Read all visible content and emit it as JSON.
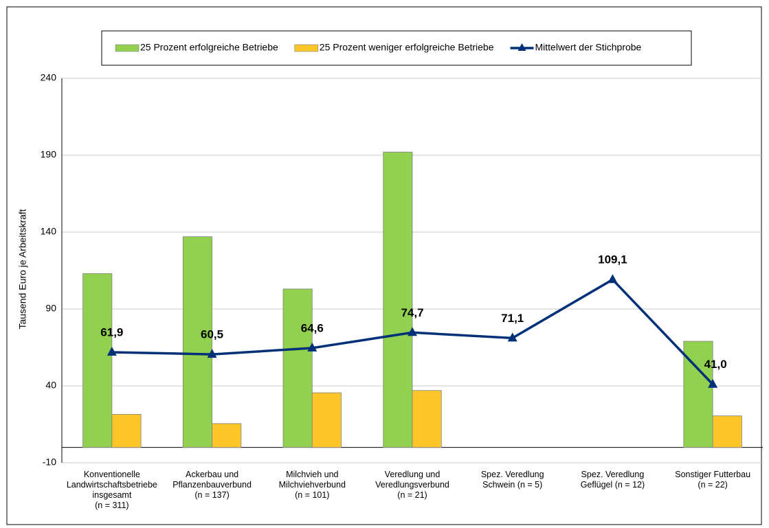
{
  "chart_data": {
    "type": "bar",
    "y_label": "Tausend Euro je Arbeitskraft",
    "categories": [
      "Konventionelle\nLandwirtschaftsbetriebe\ninsgesamt\n(n = 311)",
      "Ackerbau und\nPflanzenbauverbund\n(n = 137)",
      "Milchvieh und\nMilchviehverbund\n(n = 101)",
      "Veredlung und\nVeredlungsverbund\n(n = 21)",
      "Spez. Veredlung\nSchwein (n = 5)",
      "Spez. Veredlung\nGeflügel (n = 12)",
      "Sonstiger Futterbau\n(n = 22)"
    ],
    "series": [
      {
        "name": "25 Prozent erfolgreiche Betriebe",
        "color": "#92d050",
        "type": "bar",
        "values": [
          113,
          137,
          103,
          192,
          null,
          null,
          69
        ]
      },
      {
        "name": "25 Prozent weniger erfolgreiche Betriebe",
        "color": "#ffc629",
        "type": "bar",
        "values": [
          21.5,
          15.5,
          35.5,
          37,
          null,
          null,
          20.5
        ]
      },
      {
        "name": "Mittelwert der Stichprobe",
        "color": "#003078",
        "type": "line",
        "values": [
          61.9,
          60.5,
          64.6,
          74.7,
          71.1,
          109.1,
          41.0
        ],
        "value_labels": [
          "61,9",
          "60,5",
          "64,6",
          "74,7",
          "71,1",
          "109,1",
          "41,0"
        ]
      }
    ],
    "ylim": [
      -10,
      240
    ],
    "yticks": [
      -10,
      40,
      90,
      140,
      190,
      240
    ],
    "grid": true,
    "legend": "top"
  }
}
